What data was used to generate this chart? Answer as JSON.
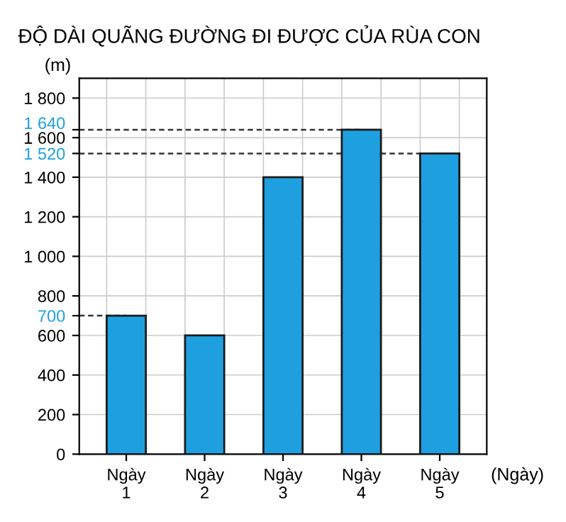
{
  "chart_data": {
    "type": "bar",
    "title": "ĐỘ DÀI QUÃNG ĐƯỜNG ĐI ĐƯỢC CỦA RÙA CON",
    "ylabel": "(m)",
    "xlabel": "(Ngày)",
    "categories": [
      "Ngày\n1",
      "Ngày\n2",
      "Ngày\n3",
      "Ngày\n4",
      "Ngày\n5"
    ],
    "values": [
      700,
      600,
      1400,
      1640,
      1520
    ],
    "color": "#1ea0e0",
    "ylim": [
      0,
      1900
    ],
    "yticks": [
      0,
      200,
      400,
      600,
      {
        "value": 700,
        "label": "700"
      },
      800,
      {
        "value": 1000,
        "label": "1 000"
      },
      {
        "value": 1200,
        "label": "1 200"
      },
      {
        "value": 1400,
        "label": "1 400"
      },
      {
        "value": 1520,
        "label": "1 520"
      },
      {
        "value": 1600,
        "label": "1 600"
      },
      {
        "value": 1640,
        "label": "1 640"
      },
      {
        "value": 1800,
        "label": "1 800"
      }
    ],
    "ref_lines": [
      {
        "axis": "y",
        "value": 700,
        "color": "#333333",
        "line_style": "dashed"
      },
      {
        "axis": "y",
        "value": 1520,
        "color": "#333333",
        "line_style": "dashed"
      },
      {
        "axis": "y",
        "value": 1640,
        "color": "#333333",
        "line_style": "dashed"
      }
    ],
    "grid": true
  }
}
